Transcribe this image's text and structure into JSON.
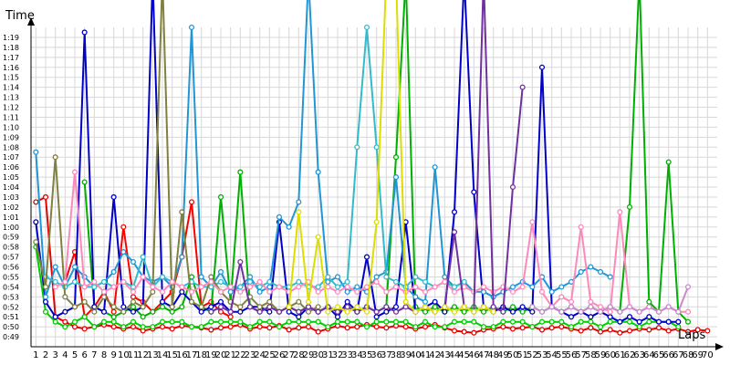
{
  "chart_data": {
    "type": "line",
    "ylabel": "Time",
    "xlabel": "Laps",
    "y_unit": "seconds",
    "ylim": [
      48,
      80
    ],
    "xlim": [
      1,
      70
    ],
    "grid": true,
    "legend": "none",
    "markers": "open circles",
    "y_ticks": [
      "0:49",
      "0:50",
      "0:51",
      "0:52",
      "0:53",
      "0:54",
      "0:55",
      "0:56",
      "0:57",
      "0:58",
      "0:59",
      "1:00",
      "1:01",
      "1:02",
      "1:03",
      "1:04",
      "1:05",
      "1:06",
      "1:07",
      "1:08",
      "1:09",
      "1:10",
      "1:11",
      "1:12",
      "1:13",
      "1:14",
      "1:15",
      "1:16",
      "1:17",
      "1:18",
      "1:19"
    ],
    "x_ticks": [
      1,
      2,
      3,
      4,
      5,
      6,
      7,
      8,
      9,
      10,
      11,
      12,
      13,
      14,
      15,
      16,
      17,
      18,
      19,
      20,
      21,
      22,
      23,
      24,
      25,
      26,
      27,
      28,
      29,
      30,
      31,
      32,
      33,
      34,
      35,
      36,
      37,
      38,
      39,
      40,
      41,
      42,
      43,
      44,
      45,
      46,
      47,
      48,
      49,
      50,
      51,
      52,
      53,
      54,
      55,
      56,
      57,
      58,
      59,
      60,
      61,
      62,
      63,
      64,
      65,
      66,
      67,
      68,
      69,
      70
    ],
    "series": [
      {
        "color": "#e60000",
        "values": [
          62.5,
          63.0,
          51.0,
          50.5,
          50.0,
          49.8,
          50.0,
          50.2,
          50.0,
          49.8,
          50.0,
          49.6,
          49.8,
          50.0,
          49.8,
          50.1,
          50.0,
          49.9,
          49.7,
          49.9,
          50.0,
          50.2,
          49.8,
          50.0,
          49.9,
          50.1,
          49.7,
          49.9,
          50.0,
          49.5,
          49.8,
          50.1,
          49.9,
          50.0,
          50.2,
          50.0,
          49.9,
          50.1,
          50.0,
          49.8,
          50.0,
          50.2,
          49.9,
          49.6,
          49.5,
          49.4,
          49.7,
          49.8,
          50.0,
          49.8,
          49.9,
          50.0,
          49.7,
          49.9,
          50.0,
          49.8,
          49.6,
          49.9,
          49.5,
          49.7,
          49.4,
          49.6,
          49.8,
          49.7,
          49.9,
          49.6,
          49.8,
          49.5,
          49.7,
          49.6
        ]
      },
      {
        "color": "#ff0000",
        "values": [
          null,
          null,
          null,
          54.5,
          57.5,
          51.0,
          52.0,
          53.5,
          51.5,
          60.0,
          53.0,
          52.5,
          51.5,
          52.5,
          53.5,
          57.0,
          62.5,
          52.0,
          52.5,
          51.5,
          51.0
        ]
      },
      {
        "color": "#00cc00",
        "values": [
          58.0,
          51.5,
          50.5,
          50.0,
          50.5,
          51.0,
          50.0,
          50.5,
          50.5,
          50.0,
          50.5,
          50.0,
          50.0,
          50.5,
          50.5,
          50.5,
          50.0,
          50.0,
          50.5,
          50.5,
          50.5,
          50.5,
          50.0,
          50.5,
          50.5,
          50.0,
          50.5,
          50.5,
          50.5,
          50.5,
          50.0,
          50.5,
          50.5,
          50.5,
          50.0,
          50.5,
          50.5,
          50.5,
          50.5,
          50.0,
          50.5,
          50.0,
          50.0,
          50.5,
          50.5,
          50.5,
          50.0,
          50.0,
          50.5,
          50.5,
          50.5,
          50.0,
          50.5,
          50.5,
          50.5,
          50.0,
          50.5,
          50.5,
          50.0,
          50.5,
          50.5,
          50.5,
          50.0,
          50.5,
          50.5,
          50.5,
          50.0
        ]
      },
      {
        "color": "#00b000",
        "values": [
          null,
          null,
          null,
          null,
          null,
          64.5,
          52.0,
          51.5,
          51.0,
          51.5,
          52.0,
          51.0,
          51.5,
          52.0,
          51.5,
          52.0,
          55.0,
          52.0,
          51.5,
          63.0,
          52.5,
          65.5,
          52.0,
          51.5,
          52.0,
          51.5,
          52.0,
          51.5,
          52.0,
          51.5,
          52.0,
          51.5,
          52.0,
          51.5,
          52.0,
          51.5,
          52.0,
          67.0,
          85.0,
          52.0,
          51.5,
          52.0,
          51.5,
          52.0,
          51.5,
          52.0,
          51.5,
          52.0,
          51.5,
          52.0,
          51.5,
          52.0,
          51.5,
          52.0,
          51.5,
          52.0,
          51.5,
          52.0,
          51.5,
          52.0,
          51.5,
          62.0,
          85.0,
          52.5,
          51.5,
          66.5,
          51.5,
          50.5
        ]
      },
      {
        "color": "#0000c8",
        "values": [
          60.5,
          52.5,
          51.0,
          51.5,
          52.0,
          79.5,
          52.0,
          51.5,
          63.0,
          52.0,
          51.5,
          52.0,
          85.0,
          52.5,
          52.0,
          53.5,
          52.5,
          51.5,
          52.0,
          52.5,
          51.5,
          51.5,
          52.0,
          52.0,
          51.5,
          60.5,
          51.5,
          51.0,
          52.0,
          51.5,
          52.0,
          51.0,
          52.5,
          51.5,
          57.0,
          51.0,
          51.5,
          52.0,
          60.5,
          51.5,
          52.0,
          52.5,
          51.5,
          61.5,
          85.0,
          63.5,
          52.0,
          51.5,
          52.0,
          51.5,
          52.0,
          51.5,
          76.0,
          52.0,
          51.5,
          51.0,
          51.5,
          51.0,
          51.5,
          51.0,
          50.5,
          51.0,
          50.5,
          51.0,
          50.5,
          50.5,
          50.5
        ]
      },
      {
        "color": "#2196d6",
        "values": [
          67.5,
          53.0,
          56.0,
          54.0,
          56.0,
          55.0,
          54.0,
          54.5,
          55.5,
          57.5,
          56.5,
          55.0,
          54.5,
          55.0,
          54.0,
          57.0,
          80.0,
          55.0,
          54.0,
          55.5,
          53.5,
          54.0,
          55.0,
          53.5,
          54.0,
          61.0,
          60.0,
          62.5,
          85.0,
          65.5,
          54.5,
          55.0,
          53.5,
          54.0,
          53.5,
          55.0,
          55.5,
          65.0,
          54.0,
          53.0,
          52.5,
          66.0,
          55.0,
          54.0,
          54.5,
          53.5,
          53.5,
          53.0,
          53.5,
          54.0,
          54.5,
          54.0,
          55.0,
          53.5,
          54.0,
          54.5,
          55.5,
          56.0,
          55.5,
          55.0
        ]
      },
      {
        "color": "#33bbcc",
        "values": [
          null,
          55.0,
          54.5,
          54.0,
          54.5,
          54.0,
          54.0,
          54.5,
          54.0,
          54.5,
          54.0,
          57.0,
          54.0,
          55.0,
          54.5,
          54.0,
          54.5,
          54.0,
          54.0,
          54.5,
          54.0,
          54.0,
          54.5,
          54.0,
          54.5,
          54.0,
          54.0,
          54.5,
          54.0,
          54.0,
          55.0,
          54.0,
          54.5,
          68.0,
          80.0,
          68.0,
          55.0,
          54.5,
          54.0,
          55.0,
          54.5,
          54.0,
          54.5,
          54.0,
          54.5
        ]
      },
      {
        "color": "#808040",
        "values": [
          58.5,
          54.0,
          67.0,
          53.0,
          52.0,
          52.5,
          51.5,
          53.0,
          52.0,
          51.5,
          52.5,
          52.0,
          53.5,
          85.0,
          52.0,
          61.5,
          52.5,
          52.0,
          55.0,
          53.5,
          52.5,
          52.0,
          53.0,
          52.0,
          52.5,
          51.5,
          52.0,
          52.5,
          51.5,
          52.0
        ]
      },
      {
        "color": "#ff88bb",
        "values": [
          null,
          null,
          54.0,
          54.5,
          65.5,
          54.0,
          54.5,
          53.5,
          54.0,
          54.5,
          53.5,
          55.0,
          54.0,
          53.5,
          54.5,
          54.0,
          53.5,
          54.0,
          54.5,
          53.5,
          54.0,
          53.5,
          54.0,
          54.5,
          53.5,
          54.0,
          53.5,
          54.0,
          54.5,
          53.5,
          54.0,
          53.5,
          54.0,
          53.5,
          54.0,
          54.5,
          53.5,
          54.0,
          53.5,
          54.0,
          53.5,
          54.0,
          54.5,
          53.5,
          54.0,
          53.5,
          54.0,
          53.5,
          54.0,
          53.5,
          54.0,
          60.5,
          53.5,
          52.0,
          53.0,
          52.5,
          60.0,
          52.5,
          52.0,
          51.5,
          61.5,
          52.0,
          51.5,
          52.0,
          51.5,
          52.0,
          51.5,
          51.5
        ]
      },
      {
        "color": "#7030a0",
        "values": [
          null,
          null,
          null,
          null,
          null,
          null,
          null,
          null,
          null,
          null,
          null,
          null,
          null,
          null,
          null,
          null,
          null,
          null,
          51.5,
          52.0,
          51.5,
          56.5,
          52.0,
          51.5,
          52.0,
          51.5,
          52.0,
          51.5,
          52.0,
          51.5,
          52.0,
          51.5,
          52.0,
          51.5,
          52.0,
          51.5,
          52.0,
          51.5,
          52.0,
          51.5,
          52.0,
          51.5,
          52.0,
          59.5,
          52.0,
          51.5,
          85.0,
          52.0,
          51.5,
          64.0,
          74.0
        ]
      },
      {
        "color": "#dddd00",
        "values": [
          null,
          null,
          null,
          null,
          null,
          null,
          null,
          null,
          null,
          null,
          null,
          null,
          null,
          null,
          null,
          null,
          null,
          null,
          null,
          null,
          null,
          null,
          null,
          null,
          null,
          null,
          52.0,
          61.5,
          52.5,
          59.0,
          51.5,
          52.0,
          51.5,
          52.0,
          51.5,
          60.5,
          85.0,
          85.0,
          52.5,
          51.5,
          52.0,
          51.5,
          52.0,
          51.5,
          52.0,
          51.5,
          52.0,
          51.5
        ]
      },
      {
        "color": "#cc88cc",
        "values": [
          null,
          null,
          null,
          null,
          null,
          null,
          null,
          null,
          null,
          null,
          null,
          null,
          null,
          null,
          null,
          null,
          null,
          null,
          null,
          null,
          null,
          null,
          null,
          null,
          null,
          null,
          null,
          null,
          null,
          null,
          null,
          null,
          null,
          null,
          null,
          null,
          null,
          null,
          null,
          null,
          null,
          null,
          null,
          null,
          null,
          null,
          null,
          null,
          null,
          null,
          null,
          52.0,
          51.5,
          52.0,
          51.5,
          52.0,
          51.5,
          52.0,
          51.5,
          52.0,
          51.5,
          52.0,
          51.5,
          52.0,
          51.5,
          52.0,
          51.5,
          54.0
        ]
      }
    ]
  }
}
